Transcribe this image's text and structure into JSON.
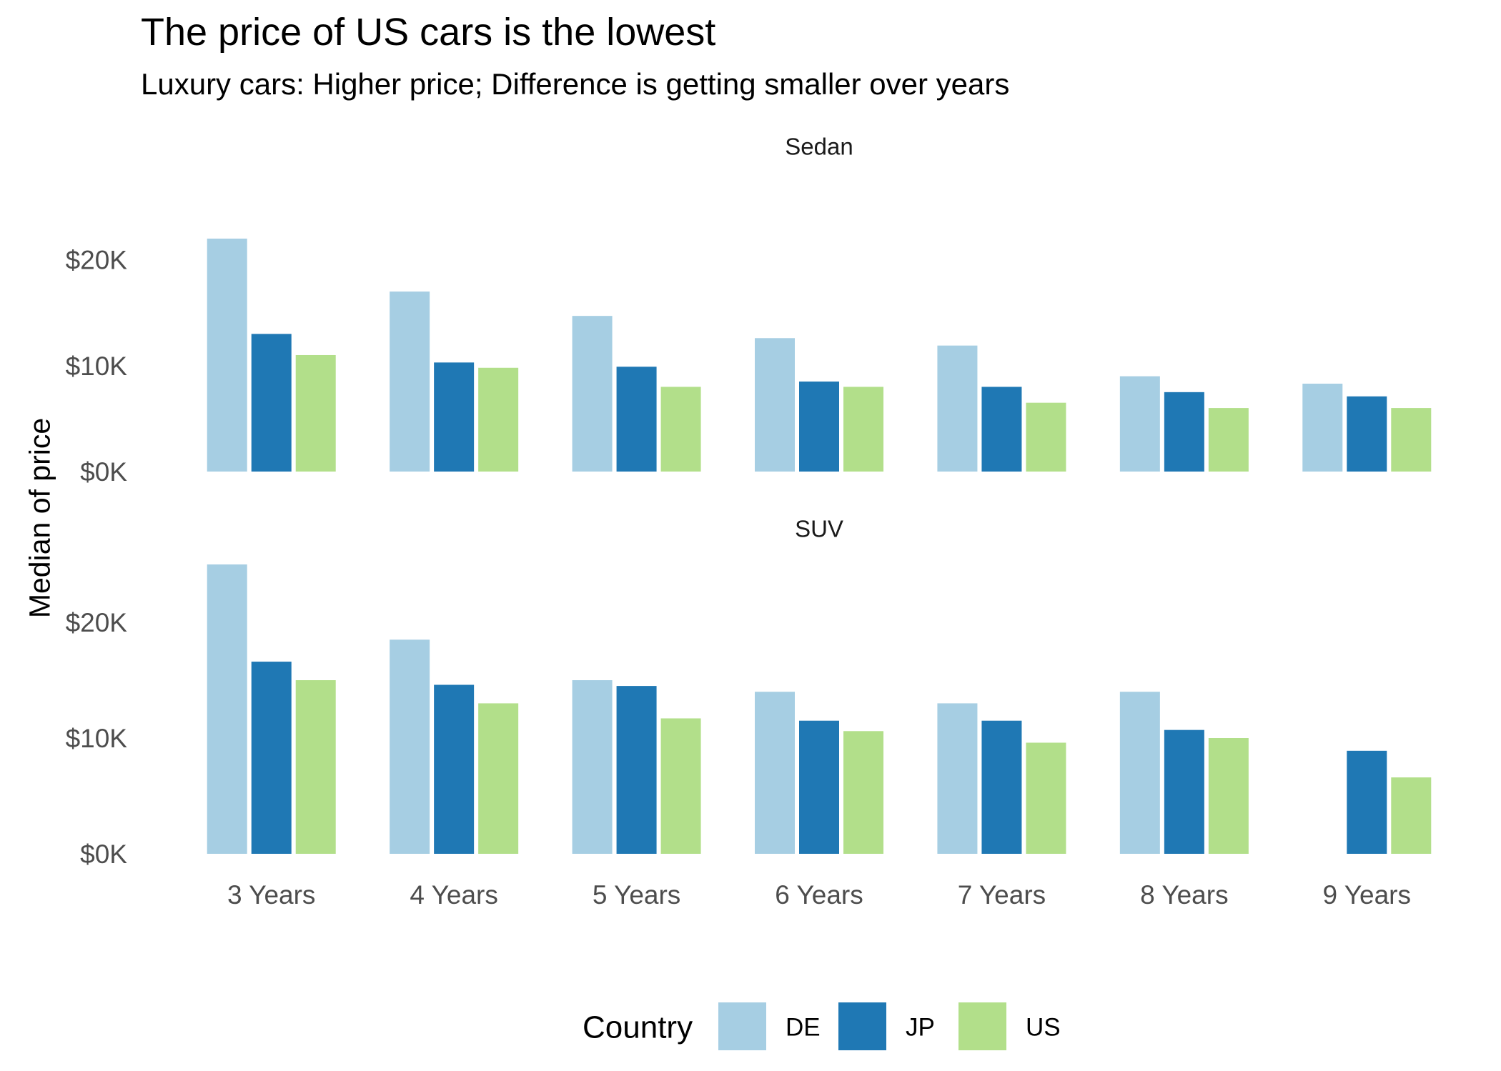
{
  "chart_data": {
    "type": "bar",
    "title": "The price of US cars is the lowest",
    "subtitle": "Luxury cars: Higher price; Difference is getting smaller over years",
    "xlabel": "",
    "ylabel": "Median of price",
    "ylim": [
      0,
      25000
    ],
    "yticks": [
      0,
      10000,
      20000
    ],
    "ytick_labels": [
      "$0K",
      "$10K",
      "$20K"
    ],
    "categories": [
      "3 Years",
      "4 Years",
      "5 Years",
      "6 Years",
      "7 Years",
      "8 Years",
      "9 Years"
    ],
    "legend": {
      "title": "Country",
      "position": "bottom"
    },
    "grid": false,
    "colors": {
      "DE": "#a6cee3",
      "JP": "#1f78b4",
      "US": "#b2df8a"
    },
    "panels": [
      {
        "name": "Sedan",
        "series": [
          {
            "name": "DE",
            "values": [
              22000,
              17000,
              14700,
              12600,
              11900,
              9000,
              8300
            ]
          },
          {
            "name": "JP",
            "values": [
              13000,
              10300,
              9900,
              8500,
              8000,
              7500,
              7100
            ]
          },
          {
            "name": "US",
            "values": [
              11000,
              9800,
              8000,
              8000,
              6500,
              6000,
              6000
            ]
          }
        ]
      },
      {
        "name": "SUV",
        "series": [
          {
            "name": "DE",
            "values": [
              25000,
              18500,
              15000,
              14000,
              13000,
              14000,
              null
            ]
          },
          {
            "name": "JP",
            "values": [
              16600,
              14600,
              14500,
              11500,
              11500,
              10700,
              8900
            ]
          },
          {
            "name": "US",
            "values": [
              15000,
              13000,
              11700,
              10600,
              9600,
              10000,
              6600
            ]
          }
        ]
      }
    ]
  }
}
